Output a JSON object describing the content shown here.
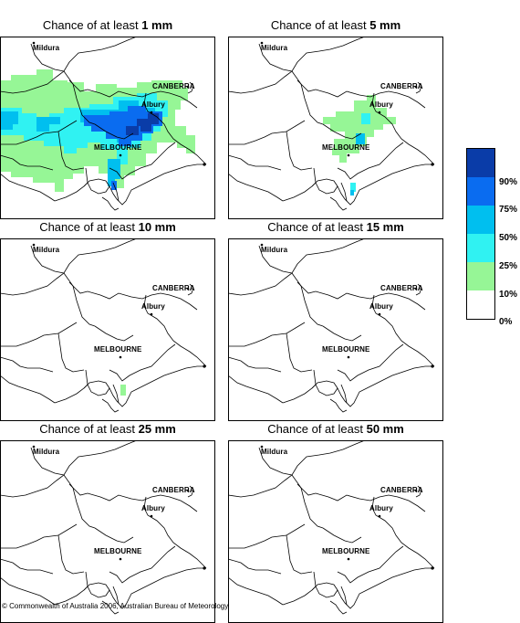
{
  "panels": [
    {
      "prefix": "Chance of at least ",
      "amount": "1 mm"
    },
    {
      "prefix": "Chance of at least ",
      "amount": "5 mm"
    },
    {
      "prefix": "Chance of at least ",
      "amount": "10 mm"
    },
    {
      "prefix": "Chance of at least ",
      "amount": "15 mm"
    },
    {
      "prefix": "Chance of at least ",
      "amount": "25 mm"
    },
    {
      "prefix": "Chance of at least ",
      "amount": "50 mm"
    }
  ],
  "places": {
    "mildura": "Mildura",
    "canberra": "CANBERRA",
    "albury": "Albury",
    "melbourne": "MELBOURNE"
  },
  "legend": {
    "labels": [
      "90%",
      "75%",
      "50%",
      "25%",
      "10%",
      "0%"
    ],
    "colors": [
      "#0a3ca8",
      "#0a6cf0",
      "#00bfef",
      "#30f2f2",
      "#96f696",
      "#ffffff"
    ]
  },
  "copyright": "© Commonwealth of Australia 2006, Australian Bureau of Meteorology"
}
